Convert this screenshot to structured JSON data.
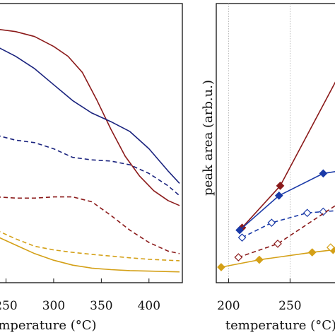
{
  "chart_data": [
    {
      "type": "line",
      "xlabel": "temperature (°C)",
      "ylabel": "",
      "xlim": [
        240,
        435
      ],
      "ylim": [
        0,
        1
      ],
      "x_ticks": [
        250,
        300,
        350,
        400
      ],
      "x_tick_labels": [
        "250",
        "300",
        "350",
        "400"
      ],
      "grid": false,
      "series": [
        {
          "color": "#8b1a1a",
          "style": "solid",
          "x": [
            240,
            260,
            280,
            300,
            315,
            330,
            345,
            360,
            375,
            390,
            405,
            420,
            432
          ],
          "y": [
            0.985,
            0.975,
            0.955,
            0.915,
            0.875,
            0.81,
            0.7,
            0.58,
            0.47,
            0.39,
            0.33,
            0.29,
            0.27
          ]
        },
        {
          "color": "#1a237e",
          "style": "solid",
          "x": [
            240,
            260,
            280,
            300,
            320,
            340,
            360,
            380,
            400,
            420,
            432
          ],
          "y": [
            0.915,
            0.875,
            0.825,
            0.76,
            0.695,
            0.645,
            0.61,
            0.57,
            0.5,
            0.41,
            0.36
          ]
        },
        {
          "color": "#1a237e",
          "style": "dashed",
          "x": [
            240,
            260,
            280,
            300,
            320,
            340,
            360,
            380,
            400,
            420,
            432
          ],
          "y": [
            0.555,
            0.535,
            0.525,
            0.5,
            0.465,
            0.455,
            0.45,
            0.435,
            0.4,
            0.35,
            0.31
          ]
        },
        {
          "color": "#8b1a1a",
          "style": "dashed",
          "x": [
            240,
            260,
            280,
            300,
            320,
            340,
            360,
            380,
            400,
            420,
            432
          ],
          "y": [
            0.305,
            0.3,
            0.3,
            0.305,
            0.305,
            0.285,
            0.23,
            0.17,
            0.12,
            0.085,
            0.075
          ]
        },
        {
          "color": "#d4a017",
          "style": "dashed",
          "x": [
            240,
            260,
            280,
            300,
            320,
            340,
            360,
            380,
            400,
            420,
            432
          ],
          "y": [
            0.17,
            0.135,
            0.105,
            0.09,
            0.08,
            0.072,
            0.065,
            0.058,
            0.052,
            0.048,
            0.046
          ]
        },
        {
          "color": "#d4a017",
          "style": "solid",
          "x": [
            240,
            260,
            280,
            300,
            320,
            340,
            360,
            380,
            400,
            420,
            432
          ],
          "y": [
            0.145,
            0.11,
            0.075,
            0.048,
            0.028,
            0.016,
            0.01,
            0.006,
            0.004,
            0.002,
            0.001
          ]
        }
      ]
    },
    {
      "type": "line",
      "xlabel": "temperature (°C)",
      "ylabel": "peak area (arb.u.)",
      "xlim": [
        190,
        290
      ],
      "ylim": [
        0,
        1
      ],
      "x_ticks": [
        200,
        250
      ],
      "x_tick_labels": [
        "200",
        "250"
      ],
      "grid": true,
      "grid_x": [
        200,
        250
      ],
      "series": [
        {
          "color": "#8b1a1a",
          "style": "solid",
          "marker": "filled-diamond",
          "x": [
            211,
            242,
            290
          ],
          "y": [
            0.18,
            0.35,
            0.8
          ]
        },
        {
          "color": "#1a3aa8",
          "style": "solid",
          "marker": "filled-diamond",
          "x": [
            209,
            241,
            277,
            290
          ],
          "y": [
            0.17,
            0.31,
            0.4,
            0.41
          ]
        },
        {
          "color": "#1a3aa8",
          "style": "dashed",
          "marker": "open-diamond",
          "x": [
            211,
            235,
            264,
            277,
            290
          ],
          "y": [
            0.14,
            0.2,
            0.24,
            0.245,
            0.25
          ]
        },
        {
          "color": "#8b1a1a",
          "style": "dashed",
          "marker": "open-diamond",
          "x": [
            208,
            240,
            290
          ],
          "y": [
            0.06,
            0.115,
            0.28
          ]
        },
        {
          "color": "#d4a017",
          "style": "solid",
          "marker": "filled-diamond",
          "x": [
            194,
            225,
            268,
            285,
            290
          ],
          "y": [
            0.02,
            0.05,
            0.08,
            0.09,
            0.095
          ]
        },
        {
          "color": "#d4a017",
          "style": "dashed",
          "marker": "open-diamond",
          "x": [
            283,
            290
          ],
          "y": [
            0.1,
            0.1
          ]
        }
      ]
    }
  ]
}
